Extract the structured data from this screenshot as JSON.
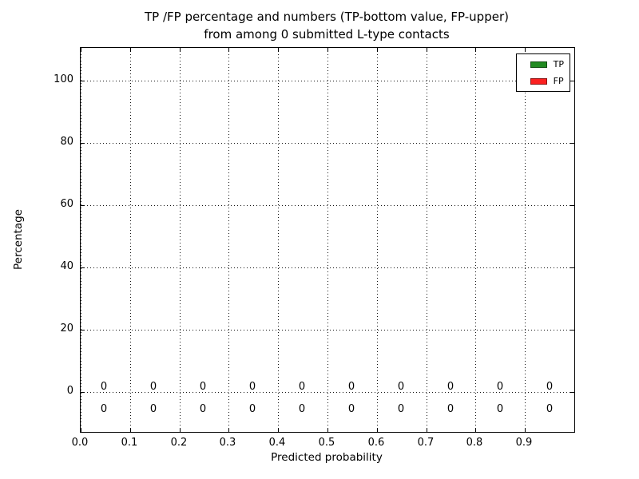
{
  "title": {
    "line1": "TP /FP percentage and numbers (TP-bottom value, FP-upper)",
    "line2": "from among 0 submitted L-type contacts"
  },
  "axes": {
    "xlabel": "Predicted probability",
    "ylabel": "Percentage",
    "yticks": [
      "0",
      "20",
      "40",
      "60",
      "80",
      "100"
    ],
    "xticks": [
      "0.0",
      "0.1",
      "0.2",
      "0.3",
      "0.4",
      "0.5",
      "0.6",
      "0.7",
      "0.8",
      "0.9"
    ]
  },
  "legend": {
    "items": [
      {
        "label": "TP",
        "color": "#228b22"
      },
      {
        "label": "FP",
        "color": "#fb2020"
      }
    ]
  },
  "annotations": {
    "fp_upper": [
      "0",
      "0",
      "0",
      "0",
      "0",
      "0",
      "0",
      "0",
      "0",
      "0"
    ],
    "tp_bottom": [
      "0",
      "0",
      "0",
      "0",
      "0",
      "0",
      "0",
      "0",
      "0",
      "0"
    ]
  },
  "chart_data": {
    "type": "bar",
    "title": "TP /FP percentage and numbers (TP-bottom value, FP-upper) from among 0 submitted L-type contacts",
    "xlabel": "Predicted probability",
    "ylabel": "Percentage",
    "categories": [
      0.05,
      0.15,
      0.25,
      0.35,
      0.45,
      0.55,
      0.65,
      0.75,
      0.85,
      0.95
    ],
    "series": [
      {
        "name": "TP",
        "color": "#228b22",
        "values": [
          0,
          0,
          0,
          0,
          0,
          0,
          0,
          0,
          0,
          0
        ]
      },
      {
        "name": "FP",
        "color": "#fb2020",
        "values": [
          0,
          0,
          0,
          0,
          0,
          0,
          0,
          0,
          0,
          0
        ]
      }
    ],
    "bar_labels": {
      "tp_bottom": [
        0,
        0,
        0,
        0,
        0,
        0,
        0,
        0,
        0,
        0
      ],
      "fp_upper": [
        0,
        0,
        0,
        0,
        0,
        0,
        0,
        0,
        0,
        0
      ]
    },
    "xticks": [
      0.0,
      0.1,
      0.2,
      0.3,
      0.4,
      0.5,
      0.6,
      0.7,
      0.8,
      0.9
    ],
    "yticks": [
      0,
      20,
      40,
      60,
      80,
      100
    ],
    "xlim": [
      0.0,
      1.0
    ],
    "ylim": [
      -13,
      110
    ],
    "grid": true,
    "legend_position": "upper right"
  }
}
